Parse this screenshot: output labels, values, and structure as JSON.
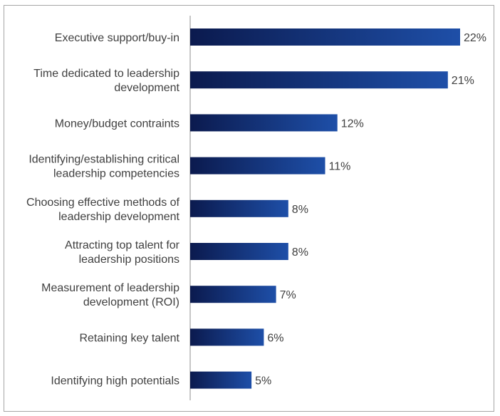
{
  "chart_data": {
    "type": "bar",
    "orientation": "horizontal",
    "title": "",
    "xlabel": "",
    "ylabel": "",
    "xlim": [
      0,
      22
    ],
    "value_suffix": "%",
    "grid": false,
    "legend": "none",
    "categories": [
      [
        "Executive support/buy-in"
      ],
      [
        "Time dedicated to leadership",
        "development"
      ],
      [
        "Money/budget contraints"
      ],
      [
        "Identifying/establishing critical",
        "leadership competencies"
      ],
      [
        "Choosing effective methods of",
        "leadership development"
      ],
      [
        "Attracting top talent for",
        "leadership positions"
      ],
      [
        "Measurement of leadership",
        "development (ROI)"
      ],
      [
        "Retaining key talent"
      ],
      [
        "Identifying high potentials"
      ]
    ],
    "values": [
      22,
      21,
      12,
      11,
      8,
      8,
      7,
      6,
      5
    ],
    "colors": {
      "bar_dark": "#0b1a4e",
      "bar_light": "#1e4fa8",
      "axis": "#8c8c8c",
      "frame": "#a6a6a6",
      "text": "#404040"
    }
  }
}
